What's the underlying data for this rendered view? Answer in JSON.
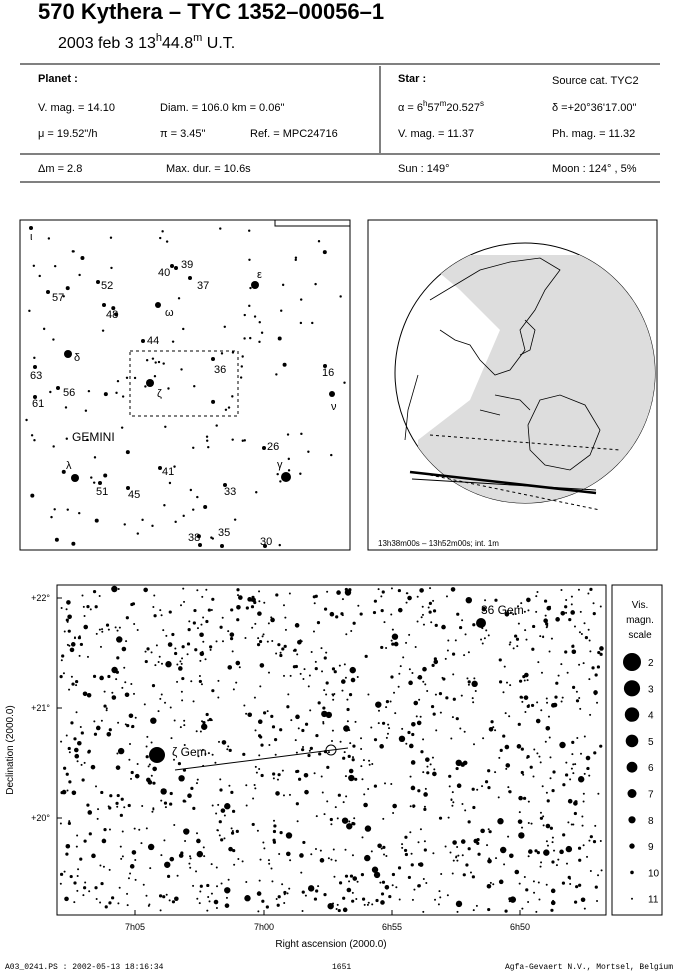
{
  "header": {
    "title": "570 Kythera  –  TYC 1352–00056–1",
    "date": [
      "2003 feb  3  13",
      "h",
      "44.8",
      "m",
      " U.T."
    ]
  },
  "planet": {
    "heading": "Planet :",
    "vmag": "V. mag. = 14.10",
    "diam": "Diam. = 106.0 km = 0.06\"",
    "mu": "μ =  19.52\"/h",
    "pi": "π =  3.45\"",
    "ref": "Ref. = MPC24716"
  },
  "star": {
    "heading": "Star :",
    "source": "Source cat.  TYC2",
    "alpha": [
      "α =  6",
      "h",
      "57",
      "m",
      "20.527",
      "s"
    ],
    "delta": "δ =+20°36'17.00\"",
    "vmag": "V. mag. = 11.37",
    "phmag": "Ph. mag. = 11.32"
  },
  "summary": {
    "dm": "Δm = 2.8",
    "maxdur": "Max. dur. = 10.6s",
    "sun": "Sun : 149°",
    "moon": "Moon : 124° ,  5%"
  },
  "finder": {
    "constellation": "GEMINI",
    "labels": [
      "ι",
      "40",
      "39",
      "37",
      "ε",
      "52",
      "57",
      "48",
      "ω",
      "44",
      "δ",
      "36",
      "63",
      "56",
      "61",
      "ζ",
      "16",
      "ν",
      "26",
      "λ",
      "γ",
      "41",
      "51",
      "45",
      "33",
      "38",
      "35",
      "30"
    ]
  },
  "globe": {
    "caption": "13h38m00s – 13h52m00s; int.  1m"
  },
  "detail": {
    "yticks": [
      "+22°",
      "+21°",
      "+20°"
    ],
    "xticks": [
      "7h05",
      "7h00",
      "6h55",
      "6h50"
    ],
    "xlabel": "Right ascension (2000.0)",
    "ylabel": "Declination (2000.0)",
    "star_labels": [
      "ζ Gem",
      "36 Gem"
    ],
    "scale_title": [
      "Vis.",
      "magn.",
      "scale"
    ],
    "scale": [
      2,
      3,
      4,
      5,
      6,
      7,
      8,
      9,
      10,
      11
    ]
  },
  "footer": {
    "file": "A03_0241.PS : 2002-05-13 18:16:34",
    "number": "1651",
    "credit": "Agfa-Gevaert N.V., Mortsel, Belgium"
  }
}
